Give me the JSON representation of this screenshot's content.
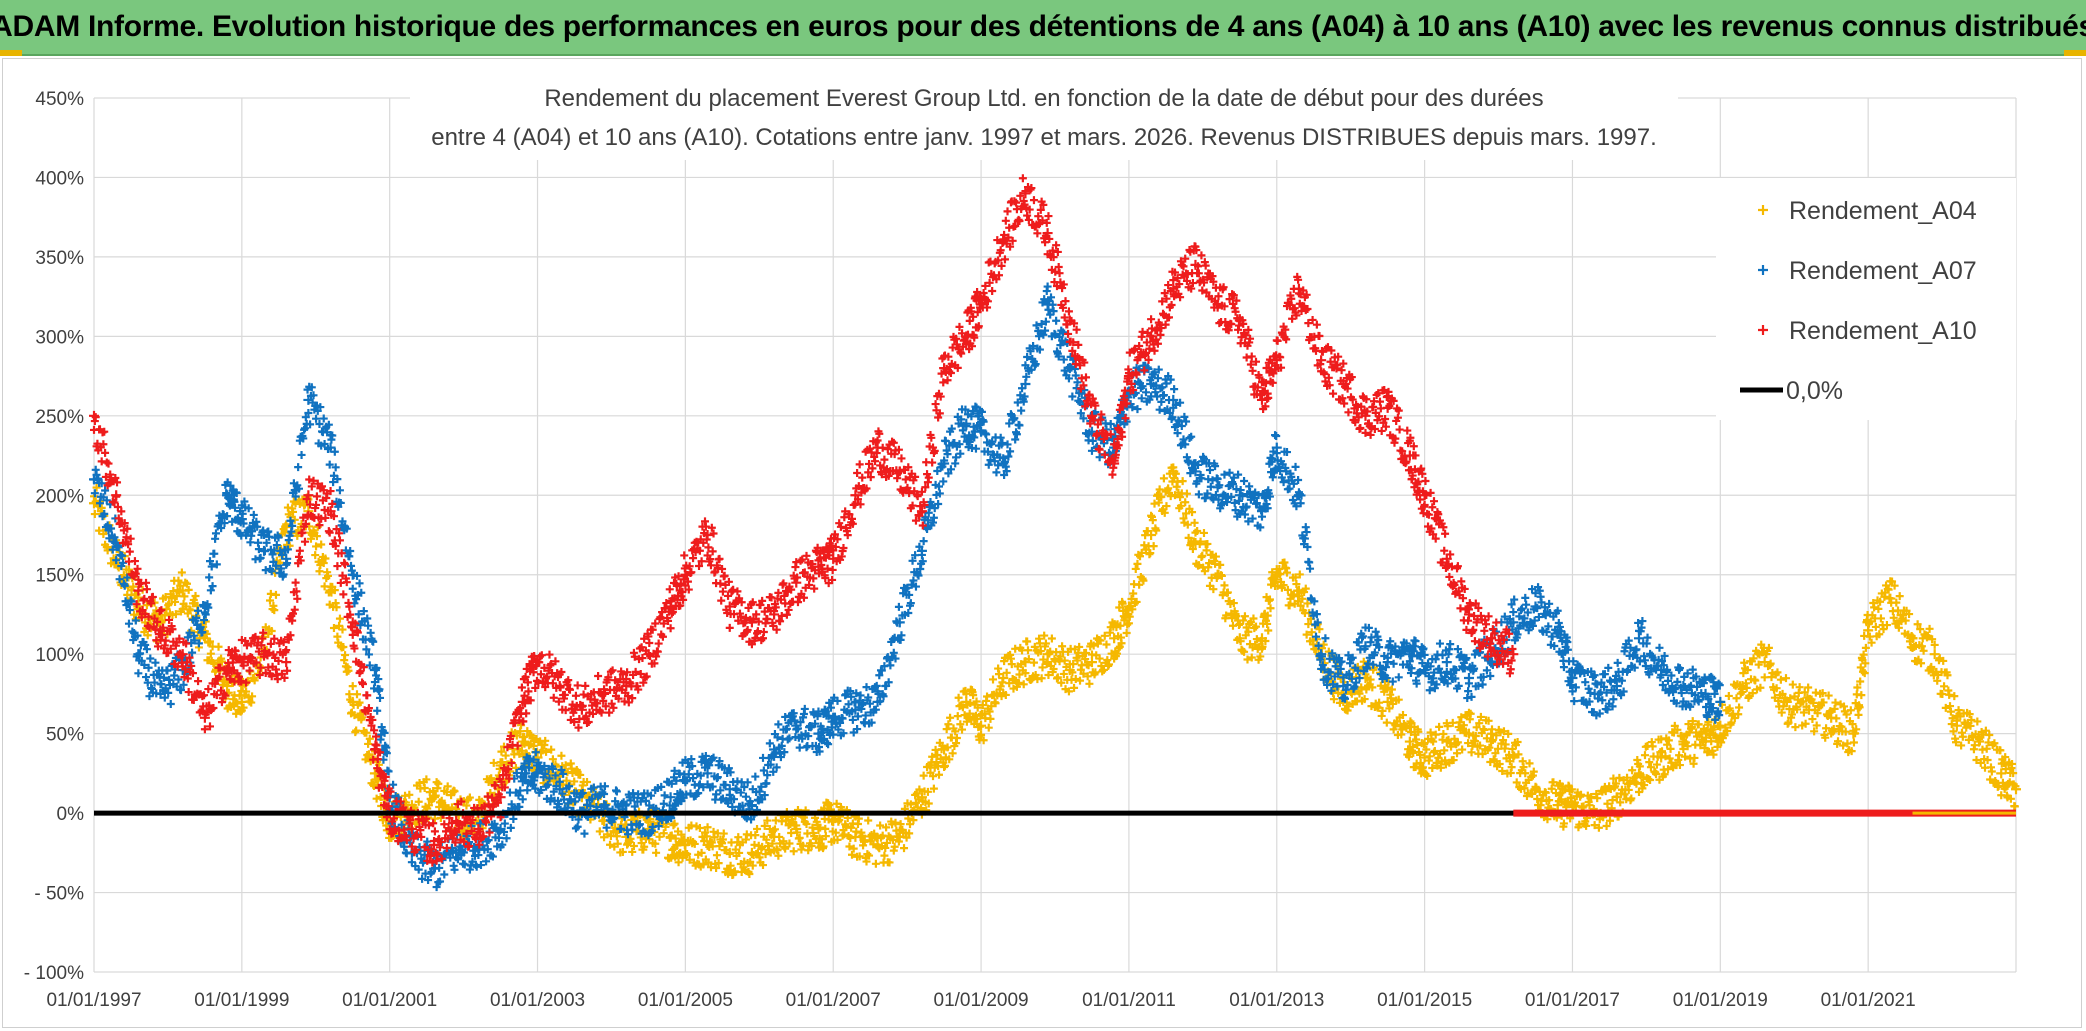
{
  "banner": {
    "title": "ADAM Informe. Evolution historique des performances en euros pour des détentions de 4 ans (A04) à 10 ans (A10) avec les revenus connus distribués"
  },
  "chart_data": {
    "type": "scatter",
    "title_line1": "Rendement du placement Everest Group Ltd. en fonction de la date de début pour des durées",
    "title_line2": "entre 4 (A04) et 10 ans (A10). Cotations entre janv. 1997 et mars. 2026. Revenus DISTRIBUES depuis mars. 1997.",
    "xlabel": "",
    "ylabel": "",
    "xlim": [
      1997.0,
      2023.0
    ],
    "ylim": [
      -100,
      450
    ],
    "x_ticks": [
      1997,
      1999,
      2001,
      2003,
      2005,
      2007,
      2009,
      2011,
      2013,
      2015,
      2017,
      2019,
      2021
    ],
    "x_tick_labels": [
      "01/01/1997",
      "01/01/1999",
      "01/01/2001",
      "01/01/2003",
      "01/01/2005",
      "01/01/2007",
      "01/01/2009",
      "01/01/2011",
      "01/01/2013",
      "01/01/2015",
      "01/01/2017",
      "01/01/2019",
      "01/01/2021"
    ],
    "y_ticks": [
      -100,
      -50,
      0,
      50,
      100,
      150,
      200,
      250,
      300,
      350,
      400,
      450
    ],
    "y_tick_labels": [
      "- 100%",
      "- 50%",
      "0%",
      "50%",
      "100%",
      "150%",
      "200%",
      "250%",
      "300%",
      "350%",
      "400%",
      "450%"
    ],
    "grid": true,
    "legend_position": "top-right",
    "series": [
      {
        "name": "Rendement_A04",
        "color": "#f5b800",
        "marker": "+",
        "x": [
          1997.0,
          1997.3,
          1997.6,
          1997.9,
          1998.2,
          1998.5,
          1998.8,
          1999.0,
          1999.3,
          1999.6,
          1999.9,
          2000.2,
          2000.5,
          2000.8,
          2001.0,
          2001.3,
          2001.6,
          2001.9,
          2002.2,
          2002.5,
          2002.8,
          2003.0,
          2003.3,
          2003.6,
          2003.9,
          2004.2,
          2004.5,
          2004.8,
          2005.0,
          2005.3,
          2005.6,
          2005.9,
          2006.2,
          2006.5,
          2006.8,
          2007.0,
          2007.3,
          2007.6,
          2007.9,
          2008.2,
          2008.5,
          2008.8,
          2009.0,
          2009.3,
          2009.6,
          2009.9,
          2010.2,
          2010.5,
          2010.8,
          2011.0,
          2011.3,
          2011.6,
          2011.9,
          2012.2,
          2012.5,
          2012.8,
          2013.0,
          2013.3,
          2013.6,
          2013.9,
          2014.2,
          2014.5,
          2014.8,
          2015.0,
          2015.3,
          2015.6,
          2015.9,
          2016.2,
          2016.5,
          2016.8,
          2017.0,
          2017.3,
          2017.6,
          2017.9,
          2018.2,
          2018.5,
          2018.8,
          2019.0,
          2019.3,
          2019.6,
          2019.9,
          2020.2,
          2020.5,
          2020.8,
          2021.0,
          2021.3,
          2021.6,
          2021.9,
          2022.2,
          2022.5,
          2022.8,
          2023.0
        ],
        "y": [
          195,
          160,
          130,
          120,
          140,
          110,
          80,
          70,
          100,
          180,
          190,
          140,
          70,
          25,
          -5,
          5,
          10,
          0,
          -5,
          30,
          45,
          35,
          25,
          10,
          -5,
          -15,
          -10,
          -15,
          -20,
          -20,
          -25,
          -25,
          -15,
          -10,
          -10,
          -5,
          -15,
          -20,
          -15,
          10,
          40,
          70,
          55,
          85,
          95,
          100,
          90,
          95,
          110,
          130,
          175,
          215,
          170,
          150,
          110,
          110,
          150,
          140,
          100,
          75,
          85,
          70,
          45,
          35,
          45,
          50,
          45,
          35,
          15,
          5,
          5,
          0,
          10,
          25,
          35,
          45,
          45,
          55,
          80,
          95,
          70,
          65,
          60,
          50,
          115,
          135,
          110,
          100,
          55,
          45,
          25,
          15
        ]
      },
      {
        "name": "Rendement_A07",
        "color": "#1072c0",
        "marker": "+",
        "x": [
          1997.0,
          1997.3,
          1997.6,
          1997.9,
          1998.2,
          1998.5,
          1998.8,
          1999.0,
          1999.3,
          1999.6,
          1999.9,
          2000.2,
          2000.5,
          2000.8,
          2001.0,
          2001.3,
          2001.6,
          2001.9,
          2002.2,
          2002.5,
          2002.8,
          2003.0,
          2003.3,
          2003.6,
          2003.9,
          2004.2,
          2004.5,
          2004.8,
          2005.0,
          2005.3,
          2005.6,
          2005.9,
          2006.2,
          2006.5,
          2006.8,
          2007.0,
          2007.3,
          2007.6,
          2007.9,
          2008.2,
          2008.5,
          2008.8,
          2009.0,
          2009.3,
          2009.6,
          2009.9,
          2010.2,
          2010.5,
          2010.8,
          2011.0,
          2011.3,
          2011.6,
          2011.9,
          2012.2,
          2012.5,
          2012.8,
          2013.0,
          2013.3,
          2013.6,
          2013.9,
          2014.2,
          2014.5,
          2014.8,
          2015.0,
          2015.3,
          2015.6,
          2015.9,
          2016.2,
          2016.5,
          2016.8,
          2017.0,
          2017.3,
          2017.6,
          2017.9,
          2018.2,
          2018.5,
          2018.8,
          2019.0
        ],
        "y": [
          210,
          170,
          100,
          75,
          90,
          130,
          200,
          185,
          165,
          160,
          260,
          230,
          150,
          90,
          10,
          -25,
          -35,
          -25,
          -20,
          -10,
          20,
          25,
          15,
          0,
          5,
          0,
          0,
          10,
          20,
          25,
          15,
          5,
          40,
          55,
          50,
          60,
          65,
          70,
          120,
          165,
          220,
          245,
          240,
          220,
          270,
          320,
          280,
          240,
          230,
          265,
          270,
          260,
          215,
          205,
          200,
          190,
          230,
          200,
          100,
          80,
          105,
          95,
          100,
          90,
          95,
          85,
          100,
          120,
          130,
          115,
          85,
          75,
          80,
          110,
          90,
          80,
          75,
          70
        ]
      },
      {
        "name": "Rendement_A10",
        "color": "#ee1c1c",
        "marker": "+",
        "x": [
          1997.0,
          1997.3,
          1997.6,
          1997.9,
          1998.2,
          1998.5,
          1998.8,
          1999.0,
          1999.3,
          1999.6,
          1999.9,
          2000.2,
          2000.5,
          2000.8,
          2001.0,
          2001.3,
          2001.6,
          2001.9,
          2002.2,
          2002.5,
          2002.8,
          2003.0,
          2003.3,
          2003.6,
          2003.9,
          2004.2,
          2004.5,
          2004.8,
          2005.0,
          2005.3,
          2005.6,
          2005.9,
          2006.2,
          2006.5,
          2006.8,
          2007.0,
          2007.3,
          2007.6,
          2007.9,
          2008.2,
          2008.5,
          2008.8,
          2009.0,
          2009.3,
          2009.6,
          2009.9,
          2010.2,
          2010.5,
          2010.8,
          2011.0,
          2011.3,
          2011.6,
          2011.9,
          2012.2,
          2012.5,
          2012.8,
          2013.0,
          2013.3,
          2013.6,
          2013.9,
          2014.2,
          2014.5,
          2014.8,
          2015.0,
          2015.3,
          2015.6,
          2015.9,
          2016.2
        ],
        "y": [
          250,
          200,
          140,
          115,
          100,
          60,
          90,
          95,
          100,
          95,
          200,
          190,
          120,
          40,
          0,
          -10,
          -20,
          -5,
          -10,
          10,
          70,
          95,
          80,
          65,
          75,
          80,
          100,
          130,
          150,
          175,
          130,
          120,
          125,
          145,
          155,
          160,
          200,
          230,
          215,
          190,
          280,
          300,
          320,
          360,
          390,
          365,
          310,
          250,
          220,
          275,
          300,
          330,
          345,
          320,
          310,
          260,
          285,
          330,
          285,
          270,
          250,
          255,
          225,
          200,
          160,
          125,
          110,
          100
        ]
      },
      {
        "name": "0,0%",
        "color": "#000000",
        "marker": "line",
        "x": [
          1997.0,
          2023.0
        ],
        "y": [
          0,
          0
        ]
      }
    ],
    "post_2016_red_baseline": {
      "from": 2016.2,
      "to": 2023.0,
      "y": 0
    }
  }
}
